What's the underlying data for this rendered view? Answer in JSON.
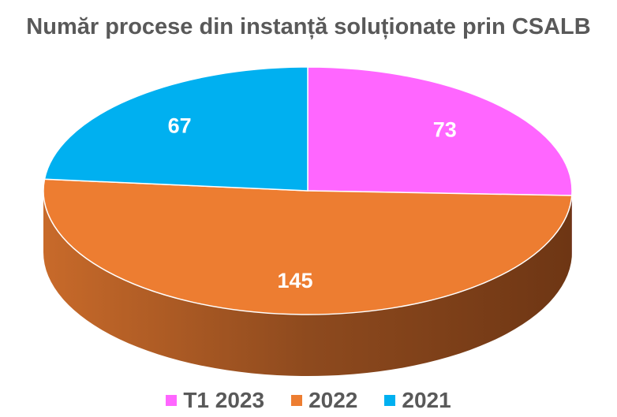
{
  "chart_data": {
    "type": "pie",
    "title": "Număr procese din instanță soluționate prin CSALB",
    "categories": [
      "T1 2023",
      "2022",
      "2021"
    ],
    "values": [
      73,
      145,
      67
    ],
    "colors": [
      "#FF66FF",
      "#ED7D31",
      "#00B0F0"
    ],
    "legend_position": "bottom",
    "three_d": true
  }
}
